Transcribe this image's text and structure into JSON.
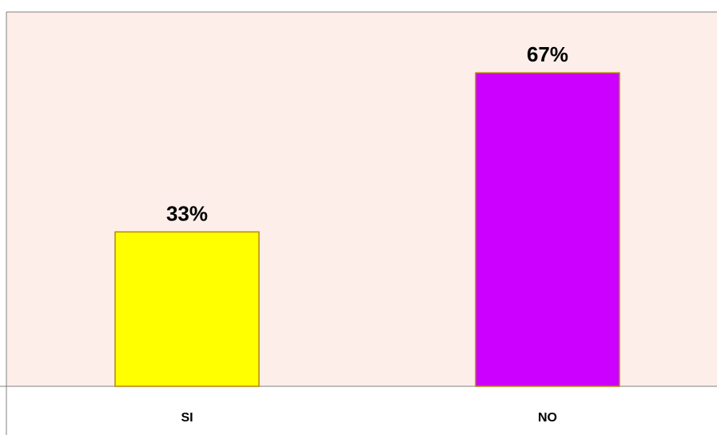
{
  "chart_data": {
    "type": "bar",
    "categories": [
      "SI",
      "NO"
    ],
    "values": [
      33,
      67
    ],
    "value_labels": [
      "33%",
      "67%"
    ],
    "title": "",
    "xlabel": "",
    "ylabel": "",
    "ylim": [
      0,
      80
    ],
    "grid": false,
    "legend": "none",
    "colors": {
      "bars": [
        "#FFFF00",
        "#CC00FF"
      ],
      "bar_border": "#B8860B",
      "plot_background": "#FDEEEA",
      "axis": "#808080"
    }
  }
}
